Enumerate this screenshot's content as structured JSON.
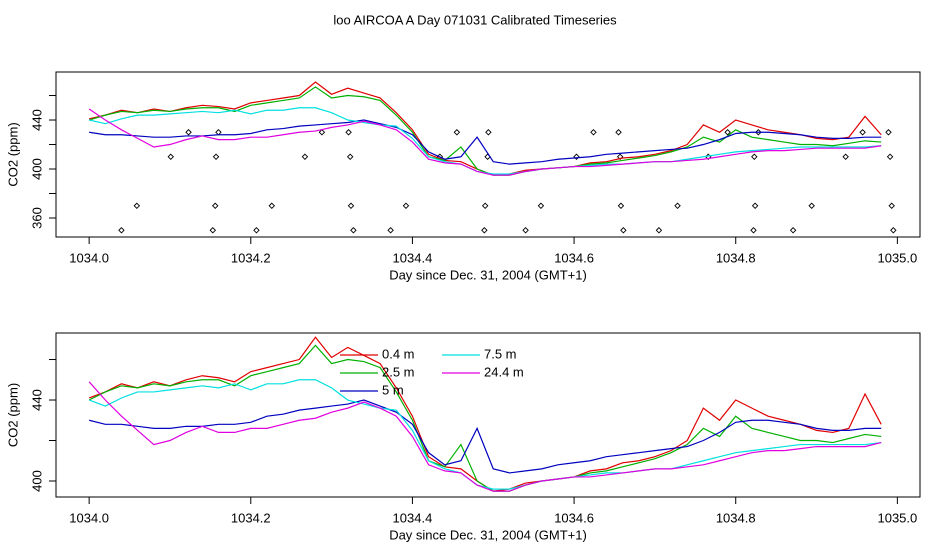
{
  "chart_data": {
    "type": "line",
    "title": "loo AIRCOA A  Day 071031  Calibrated Timeseries",
    "xlabel": "Day since Dec. 31, 2004 (GMT+1)",
    "ylabel": "CO2 (ppm)",
    "xlim": [
      1033.959,
      1035.028
    ],
    "xticks": [
      {
        "value": 1034,
        "label": "1034.0"
      },
      1034.2,
      1034.4,
      1034.6,
      1034.8,
      {
        "value": 1035,
        "label": "1035.0"
      }
    ],
    "x": [
      1034.0,
      1034.02,
      1034.04,
      1034.06,
      1034.08,
      1034.1,
      1034.12,
      1034.14,
      1034.16,
      1034.18,
      1034.2,
      1034.22,
      1034.24,
      1034.26,
      1034.28,
      1034.3,
      1034.32,
      1034.34,
      1034.36,
      1034.38,
      1034.4,
      1034.42,
      1034.44,
      1034.46,
      1034.48,
      1034.5,
      1034.52,
      1034.54,
      1034.56,
      1034.58,
      1034.6,
      1034.62,
      1034.64,
      1034.66,
      1034.68,
      1034.7,
      1034.72,
      1034.74,
      1034.76,
      1034.78,
      1034.8,
      1034.82,
      1034.84,
      1034.86,
      1034.88,
      1034.9,
      1034.92,
      1034.94,
      1034.96,
      1034.98
    ],
    "series": [
      {
        "name": "0.4 m",
        "color": "#e00000",
        "values": [
          441,
          444,
          448,
          446,
          449,
          447,
          450,
          452,
          451,
          449,
          454,
          456,
          458,
          460,
          471,
          461,
          466,
          462,
          458,
          446,
          432,
          412,
          407,
          406,
          400,
          395,
          396,
          399,
          400,
          401,
          402,
          405,
          406,
          409,
          410,
          412,
          415,
          420,
          436,
          430,
          440,
          436,
          432,
          430,
          428,
          425,
          424,
          426,
          443,
          428
        ]
      },
      {
        "name": "2.5 m",
        "color": "#00b000",
        "values": [
          440,
          444,
          447,
          446,
          448,
          447,
          449,
          450,
          450,
          447,
          452,
          454,
          456,
          458,
          467,
          458,
          460,
          459,
          456,
          444,
          430,
          410,
          407,
          418,
          400,
          395,
          395,
          398,
          400,
          401,
          402,
          404,
          405,
          407,
          409,
          411,
          414,
          418,
          426,
          422,
          432,
          426,
          424,
          422,
          420,
          420,
          419,
          421,
          423,
          422
        ]
      },
      {
        "name": "5 m",
        "color": "#0000c0",
        "values": [
          430,
          428,
          428,
          427,
          426,
          426,
          427,
          427,
          428,
          428,
          429,
          432,
          433,
          435,
          436,
          437,
          438,
          440,
          437,
          434,
          428,
          414,
          408,
          410,
          426,
          406,
          404,
          405,
          406,
          408,
          409,
          410,
          412,
          413,
          414,
          415,
          416,
          417,
          420,
          424,
          429,
          430,
          430,
          429,
          428,
          426,
          425,
          425,
          426,
          426
        ]
      },
      {
        "name": "7.5 m",
        "color": "#00e0e0",
        "values": [
          440,
          437,
          441,
          444,
          444,
          445,
          446,
          447,
          446,
          448,
          445,
          448,
          448,
          450,
          450,
          446,
          440,
          438,
          436,
          435,
          425,
          410,
          406,
          404,
          398,
          396,
          396,
          398,
          400,
          401,
          402,
          403,
          404,
          404,
          405,
          406,
          406,
          408,
          410,
          412,
          414,
          415,
          416,
          417,
          418,
          418,
          418,
          418,
          418,
          419
        ]
      },
      {
        "name": "24.4 m",
        "color": "#e000e0",
        "values": [
          449,
          440,
          432,
          425,
          418,
          420,
          424,
          427,
          424,
          424,
          426,
          426,
          428,
          430,
          431,
          434,
          436,
          439,
          436,
          432,
          422,
          408,
          405,
          404,
          398,
          395,
          395,
          398,
          400,
          401,
          402,
          402,
          403,
          404,
          405,
          406,
          406,
          407,
          408,
          410,
          412,
          414,
          415,
          415,
          416,
          417,
          417,
          417,
          417,
          419
        ]
      }
    ],
    "flags": {
      "x": [
        1034.04,
        1034.153,
        1034.207,
        1034.327,
        1034.373,
        1034.489,
        1034.54,
        1034.661,
        1034.705,
        1034.822,
        1034.871,
        1034.995,
        1034.059,
        1034.156,
        1034.226,
        1034.324,
        1034.392,
        1034.49,
        1034.559,
        1034.658,
        1034.728,
        1034.824,
        1034.894,
        1034.993,
        1034.101,
        1034.157,
        1034.267,
        1034.323,
        1034.434,
        1034.493,
        1034.603,
        1034.657,
        1034.766,
        1034.823,
        1034.936,
        1034.991,
        1034.123,
        1034.16,
        1034.288,
        1034.321,
        1034.455,
        1034.494,
        1034.624,
        1034.655,
        1034.79,
        1034.828,
        1034.957,
        1034.989
      ],
      "values": [
        350,
        350,
        350,
        350,
        350,
        350,
        350,
        350,
        350,
        350,
        350,
        350,
        370,
        370,
        370,
        370,
        370,
        370,
        370,
        370,
        370,
        370,
        370,
        370,
        410,
        410,
        410,
        410,
        410,
        410,
        410,
        410,
        410,
        410,
        410,
        410,
        430,
        430,
        430,
        430,
        430,
        430,
        430,
        430,
        430,
        430,
        430,
        430
      ]
    },
    "panels": [
      {
        "ylim": [
          344.5,
          479.2
        ],
        "yticks": [
          360,
          400,
          440
        ],
        "yminorticks": [
          380,
          420,
          460
        ],
        "flags": true,
        "legend": false
      },
      {
        "ylim": [
          392.1,
          473.1
        ],
        "yticks": [
          400,
          440
        ],
        "yminorticks": [
          420,
          460
        ],
        "flags": false,
        "legend": true
      }
    ]
  }
}
